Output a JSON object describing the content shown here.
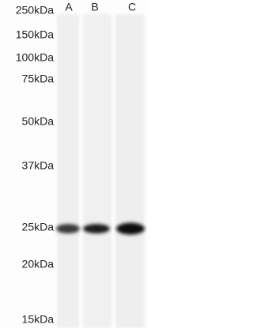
{
  "markers": [
    "250kDa",
    "150kDa",
    "100kDa",
    "75kDa",
    "50kDa",
    "37kDa",
    "25kDa",
    "20kDa",
    "15kDa"
  ],
  "lanes": [
    "A",
    "B",
    "C"
  ]
}
